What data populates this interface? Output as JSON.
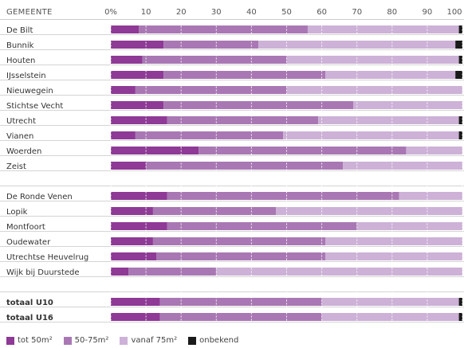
{
  "chart_data": {
    "type": "bar",
    "orientation": "horizontal",
    "stacked": true,
    "column_header": "GEMEENTE",
    "x_ticks": [
      "0%",
      "10",
      "20",
      "30",
      "40",
      "50",
      "60",
      "70",
      "80",
      "90",
      "100"
    ],
    "xlim": [
      0,
      100
    ],
    "grid": true,
    "rows": [
      {
        "label": "De Bilt",
        "values": [
          8,
          48,
          43,
          1
        ],
        "bold": false
      },
      {
        "label": "Bunnik",
        "values": [
          15,
          27,
          56,
          2
        ],
        "bold": false
      },
      {
        "label": "Houten",
        "values": [
          9,
          41,
          49,
          1
        ],
        "bold": false
      },
      {
        "label": "IJsselstein",
        "values": [
          15,
          46,
          37,
          2
        ],
        "bold": false
      },
      {
        "label": "Nieuwegein",
        "values": [
          7,
          43,
          50,
          0
        ],
        "bold": false
      },
      {
        "label": "Stichtse Vecht",
        "values": [
          15,
          54,
          31,
          0
        ],
        "bold": false
      },
      {
        "label": "Utrecht",
        "values": [
          16,
          43,
          40,
          1
        ],
        "bold": false
      },
      {
        "label": "Vianen",
        "values": [
          7,
          42,
          50,
          1
        ],
        "bold": false
      },
      {
        "label": "Woerden",
        "values": [
          25,
          59,
          16,
          0
        ],
        "bold": false
      },
      {
        "label": "Zeist",
        "values": [
          10,
          56,
          34,
          0
        ],
        "bold": false
      },
      {
        "label": "",
        "values": [
          0,
          0,
          0,
          0
        ],
        "bold": false
      },
      {
        "label": "De Ronde Venen",
        "values": [
          16,
          66,
          18,
          0
        ],
        "bold": false
      },
      {
        "label": "Lopik",
        "values": [
          12,
          35,
          53,
          0
        ],
        "bold": false
      },
      {
        "label": "Montfoort",
        "values": [
          16,
          54,
          30,
          0
        ],
        "bold": false
      },
      {
        "label": "Oudewater",
        "values": [
          12,
          49,
          39,
          0
        ],
        "bold": false
      },
      {
        "label": "Utrechtse Heuvelrug",
        "values": [
          13,
          48,
          39,
          0
        ],
        "bold": false
      },
      {
        "label": "Wijk bij Duurstede",
        "values": [
          5,
          25,
          70,
          0
        ],
        "bold": false
      },
      {
        "label": "",
        "values": [
          0,
          0,
          0,
          0
        ],
        "bold": false
      },
      {
        "label": "totaal U10",
        "values": [
          14,
          46,
          39,
          1
        ],
        "bold": true
      },
      {
        "label": "totaal U16",
        "values": [
          14,
          46,
          39,
          1
        ],
        "bold": true
      }
    ],
    "series": [
      {
        "name": "tot 50m²",
        "color": "#8e3a96"
      },
      {
        "name": "50-75m²",
        "color": "#a978b4"
      },
      {
        "name": "vanaf 75m²",
        "color": "#cdb1d7"
      },
      {
        "name": "onbekend",
        "color": "#1a1a1a"
      }
    ],
    "legend_position": "bottom-left"
  }
}
